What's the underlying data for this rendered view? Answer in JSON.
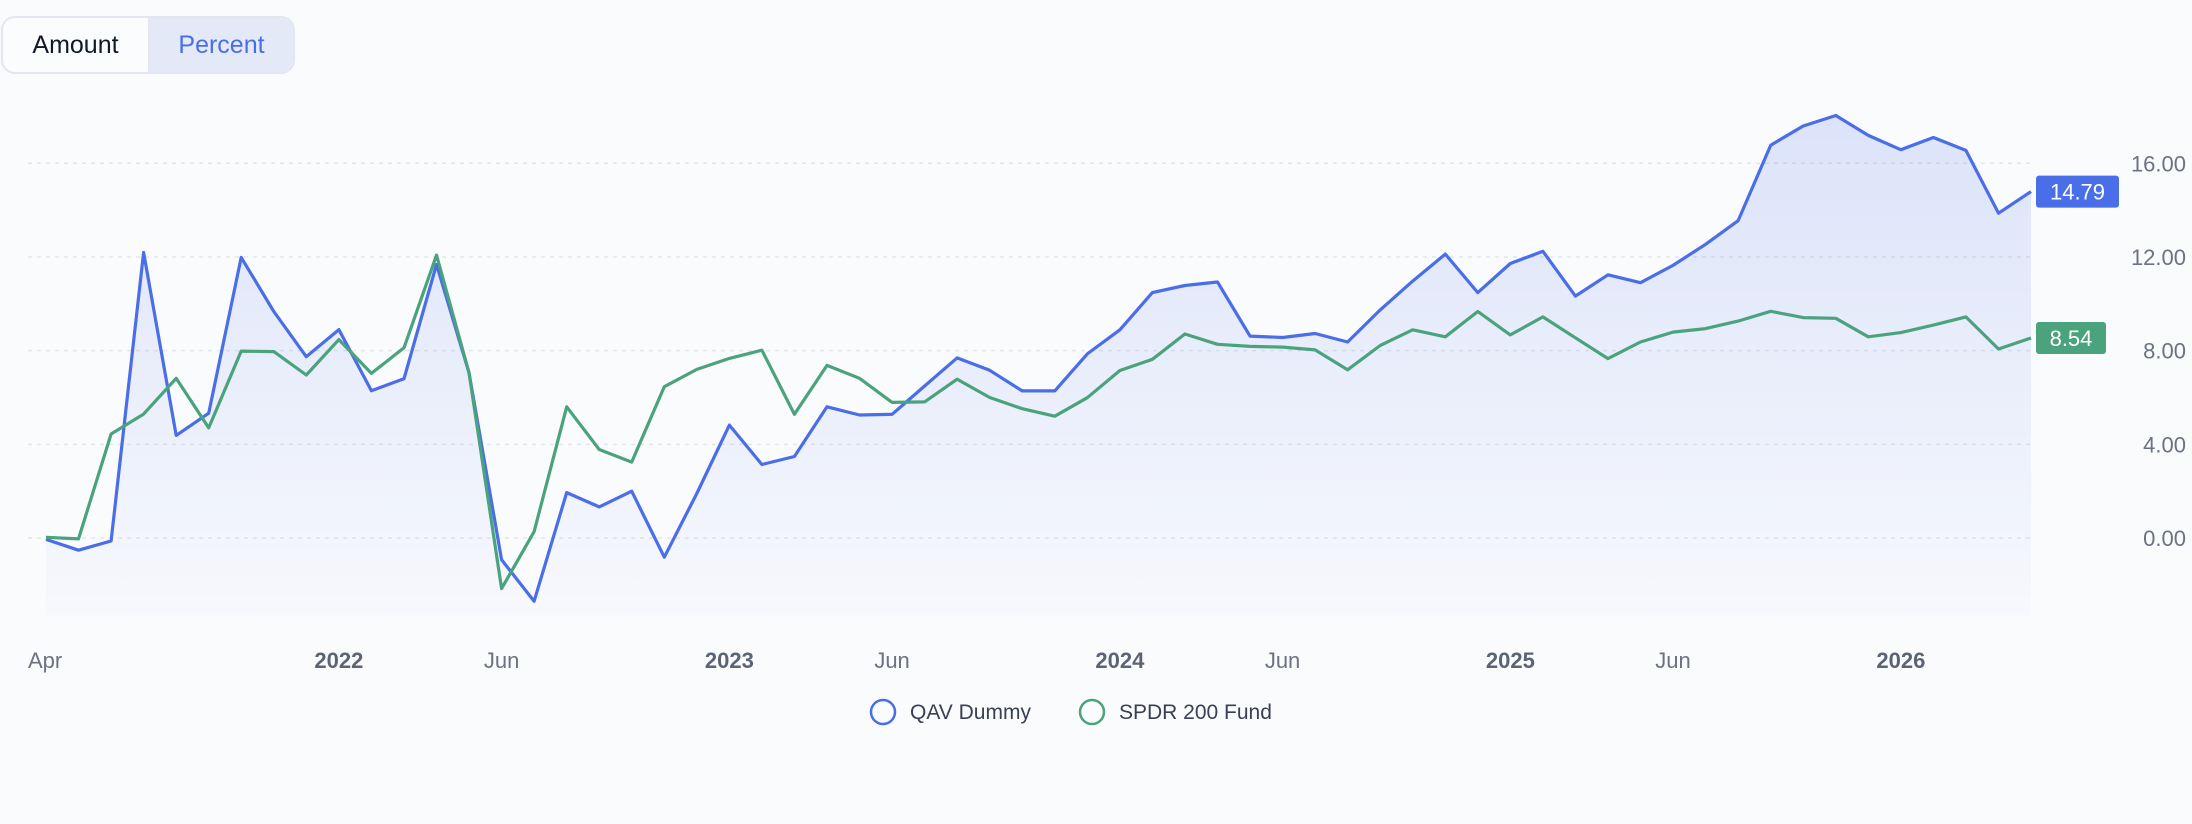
{
  "toggle": {
    "options": [
      "Amount",
      "Percent"
    ],
    "selected": "Percent"
  },
  "chart_data": {
    "type": "line",
    "x_start": "2021-04",
    "x_frequency": "monthly",
    "x_tick_labels": [
      {
        "label": "Apr",
        "date": "2021-04",
        "bold": false
      },
      {
        "label": "2022",
        "date": "2022-01",
        "bold": true
      },
      {
        "label": "Jun",
        "date": "2022-06",
        "bold": false
      },
      {
        "label": "2023",
        "date": "2023-01",
        "bold": true
      },
      {
        "label": "Jun",
        "date": "2023-06",
        "bold": false
      },
      {
        "label": "2024",
        "date": "2024-01",
        "bold": true
      },
      {
        "label": "Jun",
        "date": "2024-06",
        "bold": false
      },
      {
        "label": "2025",
        "date": "2025-01",
        "bold": true
      },
      {
        "label": "Jun",
        "date": "2025-06",
        "bold": false
      },
      {
        "label": "2026",
        "date": "2026-01",
        "bold": true
      }
    ],
    "y_ticks": [
      "0.00",
      "4.00",
      "8.00",
      "12.00",
      "16.00"
    ],
    "ylim": [
      -3.3,
      18.6
    ],
    "grid": true,
    "legend_position": "bottom",
    "series": [
      {
        "name": "QAV Dummy",
        "color": "#4a6ee8",
        "area_fill": true,
        "last_value_label": "14.79",
        "values": [
          -0.06,
          -0.52,
          -0.13,
          12.19,
          4.38,
          5.33,
          11.98,
          9.67,
          7.74,
          8.9,
          6.29,
          6.8,
          11.68,
          7.06,
          -0.93,
          -2.7,
          1.94,
          1.33,
          2.0,
          -0.82,
          1.9,
          4.82,
          3.14,
          3.48,
          5.6,
          5.25,
          5.28,
          6.49,
          7.69,
          7.16,
          6.28,
          6.28,
          7.86,
          8.89,
          10.48,
          10.78,
          10.93,
          8.62,
          8.56,
          8.73,
          8.37,
          9.74,
          10.97,
          12.12,
          10.48,
          11.72,
          12.24,
          10.33,
          11.24,
          10.9,
          11.64,
          12.54,
          13.55,
          16.77,
          17.59,
          18.04,
          17.19,
          16.58,
          17.1,
          16.55,
          13.87,
          14.79
        ]
      },
      {
        "name": "SPDR 200 Fund",
        "color": "#4aa37c",
        "area_fill": false,
        "last_value_label": "8.54",
        "values": [
          0.03,
          -0.04,
          4.44,
          5.29,
          6.82,
          4.7,
          7.98,
          7.96,
          6.96,
          8.47,
          7.03,
          8.12,
          12.08,
          7.06,
          -2.16,
          0.27,
          5.6,
          3.78,
          3.24,
          6.46,
          7.2,
          7.67,
          8.02,
          5.28,
          7.37,
          6.82,
          5.79,
          5.81,
          6.78,
          6.0,
          5.52,
          5.2,
          5.99,
          7.15,
          7.63,
          8.71,
          8.27,
          8.18,
          8.15,
          8.03,
          7.18,
          8.22,
          8.89,
          8.59,
          9.67,
          8.67,
          9.44,
          8.55,
          7.66,
          8.37,
          8.79,
          8.94,
          9.26,
          9.68,
          9.41,
          9.38,
          8.59,
          8.77,
          9.09,
          9.44,
          8.07,
          8.54
        ]
      }
    ]
  }
}
